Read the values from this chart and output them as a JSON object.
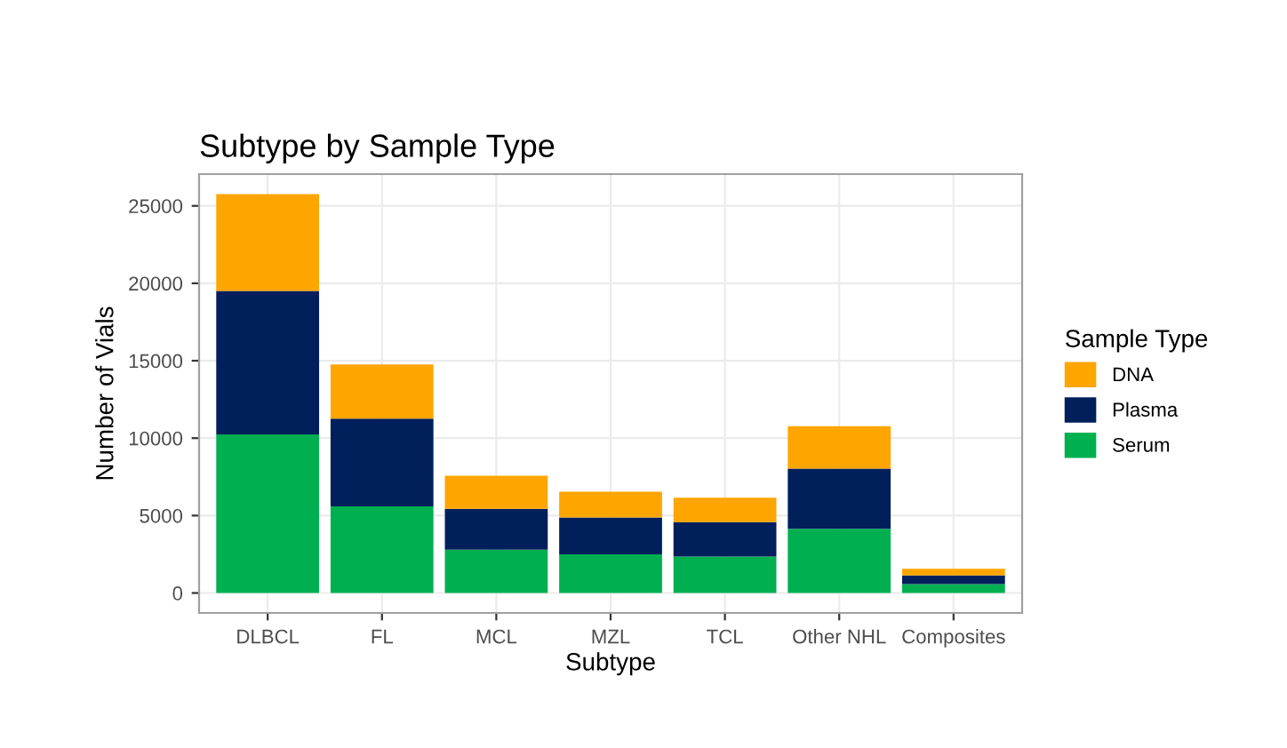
{
  "chart_data": {
    "type": "bar",
    "title": "Subtype by Sample Type",
    "xlabel": "Subtype",
    "ylabel": "Number of Vials",
    "legend_title": "Sample Type",
    "categories": [
      "DLBCL",
      "FL",
      "MCL",
      "MZL",
      "TCL",
      "Other NHL",
      "Composites"
    ],
    "stacked": true,
    "series": [
      {
        "name": "Serum",
        "color": "#00b050",
        "values": [
          10240,
          5600,
          2800,
          2500,
          2360,
          4150,
          570
        ]
      },
      {
        "name": "Plasma",
        "color": "#001f5b",
        "values": [
          9260,
          5660,
          2640,
          2370,
          2210,
          3880,
          570
        ]
      },
      {
        "name": "DNA",
        "color": "#ffa500",
        "values": [
          6260,
          3500,
          2130,
          1670,
          1590,
          2740,
          420
        ]
      }
    ],
    "ylim": [
      -1290,
      27050
    ],
    "yticks": [
      0,
      5000,
      10000,
      15000,
      20000,
      25000
    ],
    "grid": true,
    "legend": "right"
  }
}
